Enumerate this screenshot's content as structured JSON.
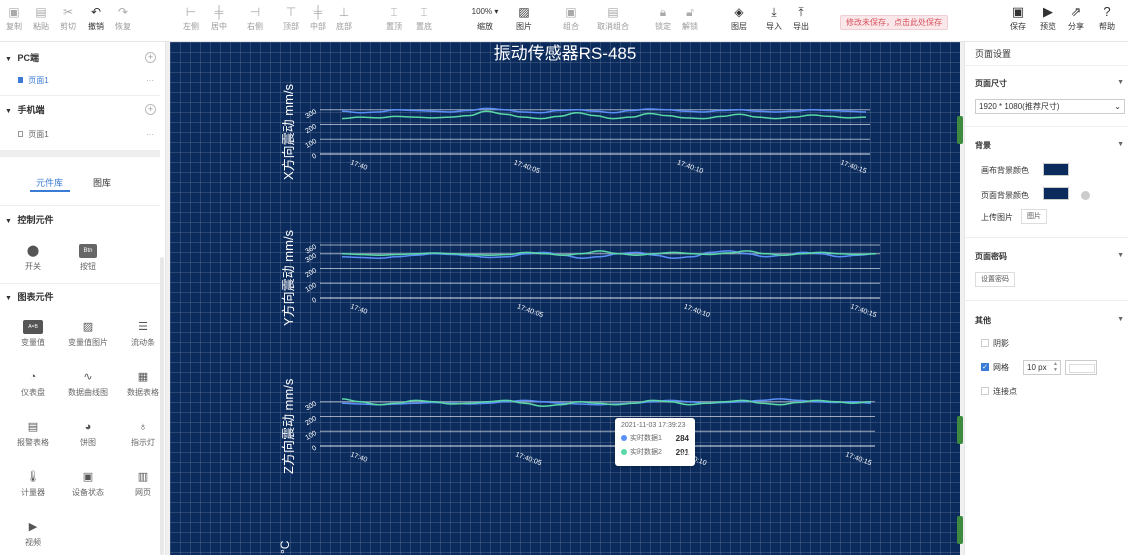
{
  "toolbar": {
    "left_items": [
      {
        "label": "复制",
        "icon": "copy-icon",
        "glyph": "▣"
      },
      {
        "label": "粘贴",
        "icon": "paste-icon",
        "glyph": "▤"
      },
      {
        "label": "剪切",
        "icon": "cut-icon",
        "glyph": "✂"
      },
      {
        "label": "撤销",
        "icon": "undo-icon",
        "glyph": "↶"
      },
      {
        "label": "恢复",
        "icon": "redo-icon",
        "glyph": "↷"
      },
      {
        "label": "左侧",
        "icon": "align-left-icon",
        "glyph": "⊢"
      },
      {
        "label": "居中",
        "icon": "align-center-icon",
        "glyph": "╪"
      },
      {
        "label": "右侧",
        "icon": "align-right-icon",
        "glyph": "⊣"
      },
      {
        "label": "顶部",
        "icon": "align-top-icon",
        "glyph": "⊤"
      },
      {
        "label": "中部",
        "icon": "align-middle-icon",
        "glyph": "╪"
      },
      {
        "label": "底部",
        "icon": "align-bottom-icon",
        "glyph": "⊥"
      },
      {
        "label": "置顶",
        "icon": "bring-top-icon",
        "glyph": "⌶"
      },
      {
        "label": "置底",
        "icon": "send-bottom-icon",
        "glyph": "⌶"
      },
      {
        "label": "缩放",
        "icon": "zoom-icon",
        "glyph": "100% ▾"
      },
      {
        "label": "图片",
        "icon": "image-icon",
        "glyph": "▨"
      },
      {
        "label": "组合",
        "icon": "group-icon",
        "glyph": "▣"
      },
      {
        "label": "取消组合",
        "icon": "ungroup-icon",
        "glyph": "▤"
      },
      {
        "label": "锁定",
        "icon": "lock-icon",
        "glyph": "🔒︎"
      },
      {
        "label": "解锁",
        "icon": "unlock-icon",
        "glyph": "🔓︎"
      },
      {
        "label": "图层",
        "icon": "layers-icon",
        "glyph": "◈"
      },
      {
        "label": "导入",
        "icon": "import-icon",
        "glyph": "⤓"
      },
      {
        "label": "导出",
        "icon": "export-icon",
        "glyph": "⤒"
      }
    ],
    "warning": "修改未保存，点击此处保存",
    "right_items": [
      {
        "label": "保存",
        "icon": "save-icon",
        "glyph": "▣"
      },
      {
        "label": "预览",
        "icon": "preview-icon",
        "glyph": "▶"
      },
      {
        "label": "分享",
        "icon": "share-icon",
        "glyph": "⇗"
      },
      {
        "label": "帮助",
        "icon": "help-icon",
        "glyph": "?"
      }
    ]
  },
  "left_panel": {
    "pc_section": "PC端",
    "pc_page": "页面1",
    "mobile_section": "手机端",
    "mobile_page": "页面1",
    "tab_components": "元件库",
    "tab_gallery": "图库",
    "control_section": "控制元件",
    "controls": [
      {
        "label": "开关",
        "icon": "switch-icon",
        "glyph": "⬤"
      },
      {
        "label": "按钮",
        "icon": "button-icon",
        "glyph": "Btn"
      }
    ],
    "chart_section": "图表元件",
    "charts": [
      {
        "label": "变量值",
        "icon": "variable-icon",
        "glyph": "A=B"
      },
      {
        "label": "变量值图片",
        "icon": "variable-image-icon",
        "glyph": "▨"
      },
      {
        "label": "流动条",
        "icon": "flow-bar-icon",
        "glyph": "☰"
      },
      {
        "label": "仪表盘",
        "icon": "gauge-icon",
        "glyph": "◔"
      },
      {
        "label": "数据曲线图",
        "icon": "curve-chart-icon",
        "glyph": "∿"
      },
      {
        "label": "数据表格",
        "icon": "data-table-icon",
        "glyph": "▦"
      },
      {
        "label": "报警表格",
        "icon": "alarm-table-icon",
        "glyph": "▤"
      },
      {
        "label": "饼图",
        "icon": "pie-chart-icon",
        "glyph": "◕"
      },
      {
        "label": "指示灯",
        "icon": "indicator-light-icon",
        "glyph": "♁"
      },
      {
        "label": "计量器",
        "icon": "thermometer-icon",
        "glyph": "🌡︎"
      },
      {
        "label": "设备状态",
        "icon": "device-status-icon",
        "glyph": "▣"
      },
      {
        "label": "网页",
        "icon": "webpage-icon",
        "glyph": "▥"
      },
      {
        "label": "视频",
        "icon": "video-icon",
        "glyph": "▶"
      }
    ]
  },
  "canvas": {
    "title": "振动传感器RS-485",
    "background": "#0b2b5c",
    "series_colors": [
      "#5b8ff9",
      "#5ad8a6"
    ],
    "tooltip": {
      "time": "2021-11-03 17:39:23",
      "series1_name": "实时数据1",
      "series1_value": "284",
      "series2_name": "实时数据2",
      "series2_value": "291"
    },
    "bottom_label": "°C"
  },
  "chart_data": [
    {
      "type": "line",
      "ylabel": "X方向震动 mm/s",
      "yticks": [
        "0",
        "100",
        "200",
        "300"
      ],
      "xticks": [
        "17:40",
        "17:40:05",
        "17:40:10",
        "17:40:15"
      ],
      "ylim": [
        0,
        380
      ],
      "series": [
        {
          "values": [
            290,
            280,
            285,
            300,
            295,
            290,
            285,
            295,
            310,
            300,
            285,
            280,
            295,
            300,
            290,
            280,
            295,
            305,
            300,
            290,
            285,
            295,
            300,
            290,
            285,
            290,
            300,
            295,
            290,
            285
          ]
        },
        {
          "values": [
            240,
            250,
            245,
            255,
            250,
            245,
            250,
            260,
            290,
            270,
            250,
            240,
            255,
            280,
            260,
            240,
            250,
            275,
            260,
            245,
            240,
            255,
            270,
            250,
            240,
            250,
            265,
            255,
            245,
            250
          ]
        }
      ]
    },
    {
      "type": "line",
      "ylabel": "Y方向震动 mm/s",
      "yticks": [
        "0",
        "100",
        "200",
        "300",
        "360"
      ],
      "xticks": [
        "17:40",
        "17:40:05",
        "17:40:10",
        "17:40:15"
      ],
      "ylim": [
        0,
        380
      ],
      "series": [
        {
          "values": [
            280,
            275,
            270,
            280,
            290,
            300,
            295,
            285,
            275,
            280,
            300,
            310,
            290,
            270,
            280,
            300,
            310,
            290,
            270,
            280,
            310,
            320,
            300,
            280,
            290,
            310,
            300,
            280,
            290,
            300
          ]
        },
        {
          "values": [
            300,
            295,
            290,
            295,
            300,
            305,
            300,
            295,
            290,
            295,
            310,
            300,
            290,
            300,
            320,
            300,
            290,
            300,
            310,
            300,
            295,
            305,
            320,
            300,
            290,
            300,
            310,
            300,
            295,
            300
          ]
        }
      ]
    },
    {
      "type": "line",
      "ylabel": "Z方向震动 mm/s",
      "yticks": [
        "0",
        "100",
        "200",
        "300"
      ],
      "xticks": [
        "17:40",
        "17:40:05",
        "17:40:10",
        "17:40:15"
      ],
      "ylim": [
        0,
        380
      ],
      "series": [
        {
          "values": [
            290,
            285,
            280,
            285,
            290,
            295,
            290,
            285,
            290,
            300,
            310,
            300,
            290,
            285,
            280,
            285,
            290,
            300,
            310,
            300,
            290,
            295,
            300,
            310,
            320,
            310,
            300,
            295,
            300,
            290
          ]
        },
        {
          "values": [
            320,
            300,
            280,
            290,
            310,
            300,
            285,
            290,
            300,
            310,
            290,
            270,
            280,
            300,
            290,
            280,
            290,
            310,
            300,
            280,
            290,
            300,
            310,
            290,
            280,
            295,
            310,
            300,
            290,
            300
          ]
        }
      ]
    }
  ],
  "right_panel": {
    "title": "页面设置",
    "size_section": "页面尺寸",
    "size_value": "1920 * 1080(推荐尺寸)",
    "bg_section": "背景",
    "canvas_bg_label": "画布背景颜色",
    "page_bg_label": "页面背景颜色",
    "upload_label": "上传图片",
    "upload_btn": "图片",
    "password_section": "页面密码",
    "password_btn": "设置密码",
    "other_section": "其他",
    "shadow_label": "阴影",
    "grid_label": "网格",
    "grid_value": "10 px",
    "connect_label": "连接点"
  }
}
